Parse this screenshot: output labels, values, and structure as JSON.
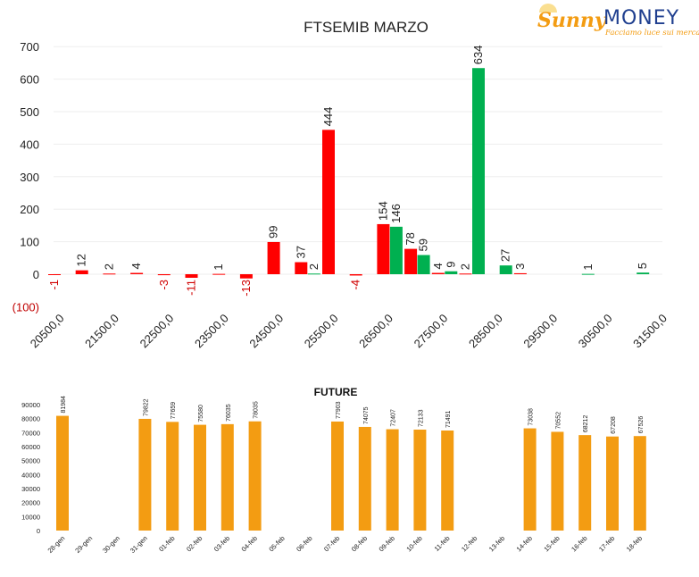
{
  "brand": {
    "name": "Sunny MONEY",
    "part1": "Sunny",
    "part2": "MONEY",
    "tagline": "Facciamo luce sui mercati"
  },
  "chart_data": [
    {
      "type": "bar",
      "title": "FTSEMIB MARZO",
      "xlabel": "",
      "ylabel": "",
      "ylim": [
        -100,
        700
      ],
      "yticks": [
        -100,
        0,
        100,
        200,
        300,
        400,
        500,
        600,
        700
      ],
      "ytick_labels": [
        "(100)",
        "0",
        "100",
        "200",
        "300",
        "400",
        "500",
        "600",
        "700"
      ],
      "grid": true,
      "categories": [
        20500,
        21000,
        21500,
        22000,
        22500,
        23000,
        23500,
        24000,
        24500,
        25000,
        25500,
        26000,
        26500,
        27000,
        27500,
        28000,
        28500,
        29000,
        29500,
        30000,
        30500,
        31000,
        31500
      ],
      "xtick_labels": [
        "20500,0",
        "21500,0",
        "22500,0",
        "23500,0",
        "24500,0",
        "25500,0",
        "26500,0",
        "27500,0",
        "28500,0",
        "29500,0",
        "30500,0",
        "31500,0"
      ],
      "series": [
        {
          "color": "#ff0000",
          "values": [
            -1,
            12,
            2,
            4,
            -3,
            -11,
            1,
            -13,
            99,
            37,
            444,
            -4,
            154,
            78,
            4,
            2,
            null,
            3,
            null,
            null,
            null,
            null,
            null
          ]
        },
        {
          "color": "#00b050",
          "values": [
            null,
            null,
            null,
            null,
            null,
            null,
            null,
            null,
            null,
            2,
            null,
            null,
            146,
            59,
            9,
            634,
            27,
            null,
            null,
            1,
            null,
            5,
            null
          ]
        }
      ]
    },
    {
      "type": "bar",
      "title": "FUTURE",
      "xlabel": "",
      "ylabel": "",
      "ylim": [
        0,
        90000
      ],
      "yticks": [
        0,
        10000,
        20000,
        30000,
        40000,
        50000,
        60000,
        70000,
        80000,
        90000
      ],
      "grid": false,
      "color": "#f39c12",
      "categories": [
        "28-gen",
        "29-gen",
        "30-gen",
        "31-gen",
        "01-feb",
        "02-feb",
        "03-feb",
        "04-feb",
        "05-feb",
        "06-feb",
        "07-feb",
        "08-feb",
        "09-feb",
        "10-feb",
        "11-feb",
        "12-feb",
        "13-feb",
        "14-feb",
        "15-feb",
        "16-feb",
        "17-feb",
        "18-feb"
      ],
      "values": [
        81984,
        null,
        null,
        79822,
        77659,
        75580,
        76035,
        78035,
        null,
        null,
        77903,
        74075,
        72407,
        72133,
        71491,
        null,
        null,
        73038,
        70552,
        68212,
        67208,
        67526
      ]
    }
  ]
}
